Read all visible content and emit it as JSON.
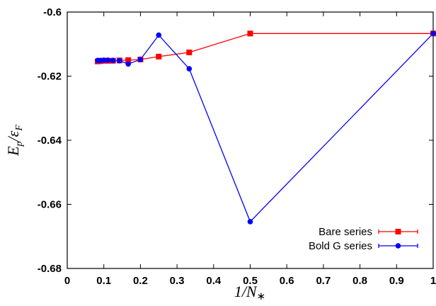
{
  "chart_data": {
    "type": "line",
    "title": "",
    "xlabel": "1/N*",
    "ylabel": "Ep/εF",
    "xlim": [
      0,
      1
    ],
    "ylim": [
      -0.68,
      -0.6
    ],
    "x_ticks": [
      "0",
      "0.1",
      "0.2",
      "0.3",
      "0.4",
      "0.5",
      "0.6",
      "0.7",
      "0.8",
      "0.9",
      "1"
    ],
    "y_ticks": [
      "-0.6",
      "-0.62",
      "-0.64",
      "-0.66",
      "-0.68"
    ],
    "grid": false,
    "legend_position": "bottom-right",
    "series": [
      {
        "name": "Bare series",
        "color": "#ff0000",
        "marker": "square",
        "x": [
          0.0833,
          0.0909,
          0.1,
          0.1111,
          0.125,
          0.1429,
          0.1667,
          0.2,
          0.25,
          0.3333,
          0.5,
          1.0
        ],
        "y": [
          -0.6154,
          -0.6153,
          -0.6152,
          -0.6152,
          -0.6152,
          -0.6151,
          -0.615,
          -0.6148,
          -0.6139,
          -0.6126,
          -0.6067,
          -0.6067
        ]
      },
      {
        "name": "Bold G series",
        "color": "#0000ff",
        "marker": "circle",
        "x": [
          0.0833,
          0.0909,
          0.1,
          0.1111,
          0.125,
          0.1429,
          0.1667,
          0.2,
          0.25,
          0.3333,
          0.5,
          1.0
        ],
        "y": [
          -0.6151,
          -0.6151,
          -0.615,
          -0.615,
          -0.6151,
          -0.6152,
          -0.6162,
          -0.6148,
          -0.6072,
          -0.6177,
          -0.6654,
          -0.6067
        ]
      }
    ]
  }
}
